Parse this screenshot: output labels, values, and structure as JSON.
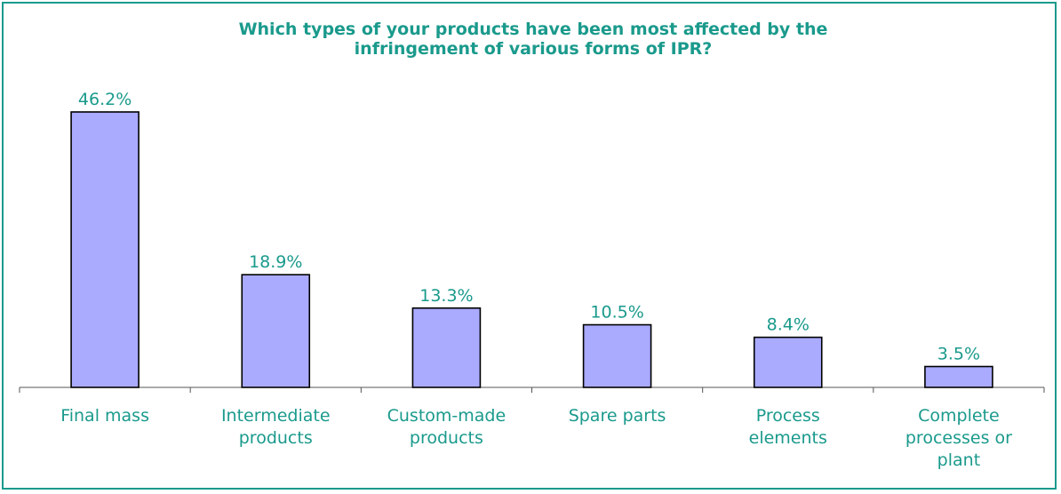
{
  "chart_data": {
    "type": "bar",
    "title_lines": [
      "Which types of your products have been most affected by the",
      "infringement of various forms of IPR?"
    ],
    "categories": [
      [
        "Final mass"
      ],
      [
        "Intermediate",
        "products"
      ],
      [
        "Custom-made",
        "products"
      ],
      [
        "Spare parts"
      ],
      [
        "Process",
        "elements"
      ],
      [
        "Complete",
        "processes or",
        "plant"
      ]
    ],
    "values": [
      46.2,
      18.9,
      13.3,
      10.5,
      8.4,
      3.5
    ],
    "value_labels": [
      "46.2%",
      "18.9%",
      "13.3%",
      "10.5%",
      "8.4%",
      "3.5%"
    ],
    "xlabel": "",
    "ylabel": "",
    "ylim": [
      0,
      46.2
    ],
    "grid": false,
    "legend": "none",
    "colors": {
      "bar_fill": "#aaaaff",
      "bar_stroke": "#000000",
      "text": "#1a9a8c",
      "frame": "#1a9a8c"
    }
  }
}
